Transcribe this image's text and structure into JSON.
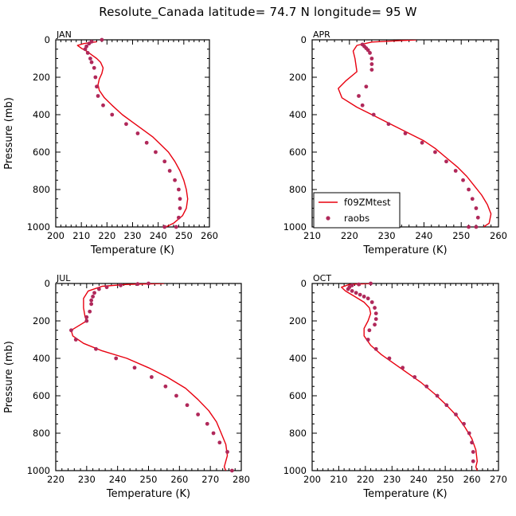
{
  "title": "Resolute_Canada   latitude= 74.7 N longitude= 95 W",
  "colors": {
    "model": "#e8000f",
    "obs": "#b0285a",
    "axis": "#000000"
  },
  "legend": {
    "model_label": "f09ZMtest",
    "obs_label": "raobs"
  },
  "chart_data": [
    {
      "type": "line",
      "panel": "JAN",
      "xlabel": "Temperature (K)",
      "ylabel": "Pressure (mb)",
      "xlim": [
        200,
        260
      ],
      "xticks": [
        200,
        210,
        220,
        230,
        240,
        250,
        260
      ],
      "ylim": [
        1000,
        0
      ],
      "yticks": [
        0,
        200,
        400,
        600,
        800,
        1000
      ],
      "series": [
        {
          "name": "f09ZMtest",
          "style": "line",
          "x": [
            216,
            211,
            208.5,
            210,
            212,
            214,
            216,
            217.5,
            218.5,
            218,
            217,
            216.5,
            217,
            219,
            222,
            226,
            230,
            234,
            238,
            241,
            244,
            246.5,
            248.5,
            250,
            251,
            251.5,
            251,
            249.5,
            246,
            243
          ],
          "y": [
            10,
            20,
            30,
            45,
            60,
            80,
            100,
            120,
            150,
            180,
            210,
            240,
            270,
            310,
            350,
            400,
            440,
            480,
            520,
            560,
            600,
            650,
            700,
            750,
            800,
            850,
            900,
            940,
            980,
            1000
          ]
        },
        {
          "name": "raobs",
          "style": "points",
          "x": [
            218,
            214,
            213,
            212,
            211.5,
            212.5,
            213.5,
            214,
            215,
            215.5,
            216,
            216.5,
            218.5,
            222,
            227.5,
            232,
            235.5,
            239,
            242.5,
            244.5,
            246.5,
            248,
            248.5,
            248.5,
            248,
            247,
            242.5
          ],
          "y": [
            0,
            10,
            20,
            35,
            50,
            70,
            100,
            120,
            150,
            200,
            250,
            300,
            350,
            400,
            450,
            500,
            550,
            600,
            650,
            700,
            750,
            800,
            850,
            900,
            950,
            1000,
            1000
          ]
        }
      ]
    },
    {
      "type": "line",
      "panel": "APR",
      "xlabel": "Temperature (K)",
      "ylabel": "",
      "xlim": [
        210,
        260
      ],
      "xticks": [
        210,
        220,
        230,
        240,
        250,
        260
      ],
      "ylim": [
        1000,
        0
      ],
      "yticks": [
        0,
        200,
        400,
        600,
        800,
        1000
      ],
      "series": [
        {
          "name": "f09ZMtest",
          "style": "line",
          "x": [
            238,
            226,
            222,
            221,
            221.5,
            222,
            219,
            217,
            218,
            222,
            227,
            232,
            236,
            240,
            243,
            246,
            249,
            251.5,
            253.5,
            255.5,
            257,
            258,
            257.5,
            256
          ],
          "y": [
            0,
            12,
            30,
            60,
            100,
            170,
            220,
            260,
            310,
            360,
            410,
            460,
            500,
            540,
            580,
            630,
            680,
            730,
            780,
            830,
            880,
            930,
            980,
            1000
          ]
        },
        {
          "name": "raobs",
          "style": "points",
          "x": [
            223.5,
            224,
            224.5,
            225,
            225.5,
            226,
            226,
            226,
            224.5,
            222.5,
            223.5,
            226.5,
            230.5,
            235,
            239.5,
            243,
            246,
            248.5,
            250.5,
            252,
            253,
            254,
            254.5,
            254,
            252
          ],
          "y": [
            25,
            35,
            45,
            55,
            70,
            100,
            130,
            160,
            250,
            300,
            350,
            400,
            450,
            500,
            550,
            600,
            650,
            700,
            750,
            800,
            850,
            900,
            950,
            1000,
            1000
          ]
        }
      ]
    },
    {
      "type": "line",
      "panel": "JUL",
      "xlabel": "Temperature (K)",
      "ylabel": "Pressure (mb)",
      "xlim": [
        220,
        280
      ],
      "xticks": [
        220,
        230,
        240,
        250,
        260,
        270,
        280
      ],
      "ylim": [
        1000,
        0
      ],
      "yticks": [
        0,
        200,
        400,
        600,
        800,
        1000
      ],
      "series": [
        {
          "name": "f09ZMtest",
          "style": "line",
          "x": [
            255,
            243,
            235,
            230.5,
            229,
            229,
            229.5,
            230,
            228,
            225,
            225.5,
            229,
            235,
            243,
            250,
            256,
            262,
            266,
            269.5,
            272,
            273.5,
            275,
            275.5,
            274.5,
            275
          ],
          "y": [
            0,
            5,
            15,
            40,
            80,
            130,
            180,
            200,
            220,
            250,
            280,
            320,
            360,
            400,
            450,
            500,
            560,
            620,
            680,
            740,
            800,
            860,
            920,
            980,
            1000
          ]
        },
        {
          "name": "raobs",
          "style": "points",
          "x": [
            250,
            246.5,
            241,
            236.5,
            234,
            232.5,
            232,
            231.5,
            231.5,
            231,
            230,
            230,
            225,
            226.5,
            233,
            239.5,
            245.5,
            251,
            255.5,
            259,
            262.5,
            266,
            269,
            271,
            273,
            275.5,
            277
          ],
          "y": [
            0,
            3,
            10,
            20,
            30,
            50,
            70,
            90,
            110,
            150,
            180,
            200,
            250,
            300,
            350,
            400,
            450,
            500,
            550,
            600,
            650,
            700,
            750,
            800,
            850,
            900,
            1000
          ]
        }
      ]
    },
    {
      "type": "line",
      "panel": "OCT",
      "xlabel": "Temperature (K)",
      "ylabel": "",
      "xlim": [
        200,
        270
      ],
      "xticks": [
        200,
        210,
        220,
        230,
        240,
        250,
        260,
        270
      ],
      "ylim": [
        1000,
        0
      ],
      "yticks": [
        0,
        200,
        400,
        600,
        800,
        1000
      ],
      "series": [
        {
          "name": "f09ZMtest",
          "style": "line",
          "x": [
            222,
            214,
            211,
            212.5,
            216,
            219.5,
            221.5,
            222,
            221,
            219.5,
            219.5,
            222,
            226,
            231,
            236,
            241,
            246,
            250.5,
            254.5,
            257.5,
            260,
            261.5,
            262,
            261.5,
            262
          ],
          "y": [
            0,
            5,
            20,
            40,
            70,
            100,
            130,
            160,
            200,
            240,
            280,
            330,
            380,
            430,
            480,
            530,
            590,
            650,
            710,
            770,
            830,
            890,
            950,
            980,
            1000
          ]
        },
        {
          "name": "raobs",
          "style": "points",
          "x": [
            222,
            217.5,
            215,
            214,
            213.5,
            215,
            216.5,
            218,
            219.5,
            221,
            222.5,
            223.5,
            224,
            224,
            223.5,
            221.5,
            221,
            224,
            229,
            234,
            238.5,
            243,
            247,
            250.5,
            254,
            257,
            259,
            260,
            260.5,
            260.5
          ],
          "y": [
            0,
            5,
            10,
            20,
            30,
            40,
            50,
            60,
            70,
            80,
            100,
            130,
            160,
            190,
            220,
            250,
            300,
            350,
            400,
            450,
            500,
            550,
            600,
            650,
            700,
            750,
            800,
            850,
            900,
            950
          ]
        }
      ]
    }
  ]
}
